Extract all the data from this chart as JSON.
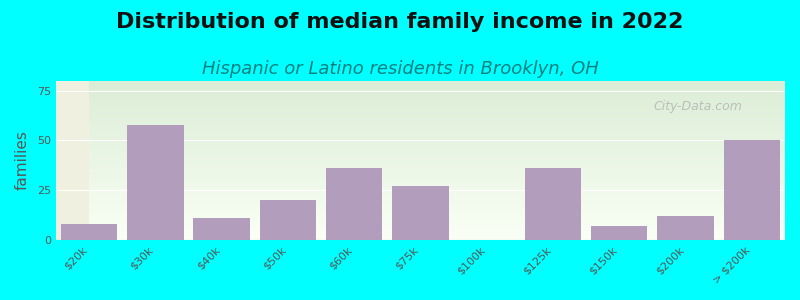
{
  "title": "Distribution of median family income in 2022",
  "subtitle": "Hispanic or Latino residents in Brooklyn, OH",
  "ylabel": "families",
  "categories": [
    "$20k",
    "$30k",
    "$40k",
    "$50k",
    "$60k",
    "$75k",
    "$100k",
    "$125k",
    "$150k",
    "$200k",
    "> $200k"
  ],
  "values": [
    8,
    58,
    11,
    20,
    36,
    27,
    0,
    36,
    7,
    12,
    50
  ],
  "bar_color": "#b39dbd",
  "background_color": "#00ffff",
  "plot_bg_top": "#f0f0e0",
  "plot_bg_bottom": "#e8f0e0",
  "title_color": "#111111",
  "subtitle_color": "#008080",
  "ylabel_color": "#555555",
  "yticks": [
    0,
    25,
    50,
    75
  ],
  "ylim": [
    0,
    80
  ],
  "watermark": "City-Data.com",
  "title_fontsize": 16,
  "subtitle_fontsize": 13,
  "ylabel_fontsize": 11,
  "tick_fontsize": 8
}
